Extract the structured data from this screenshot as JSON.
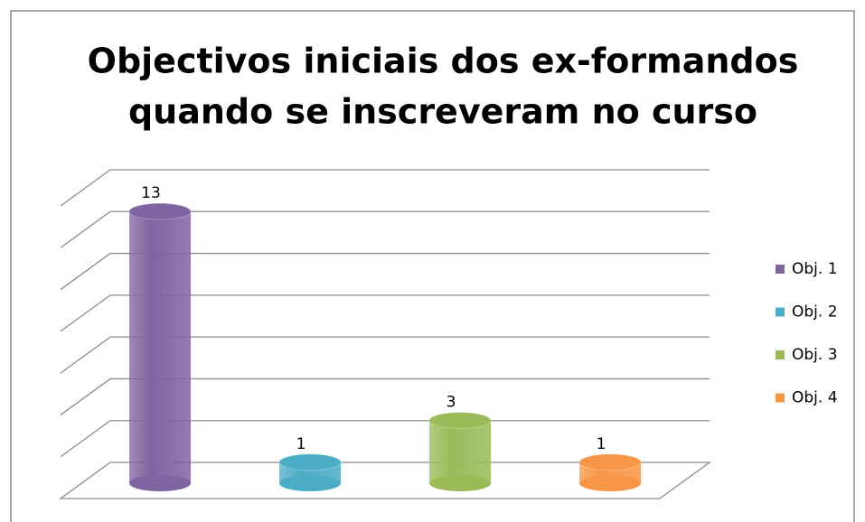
{
  "chart_data": {
    "type": "bar3d",
    "title": [
      "Objectivos iniciais dos ex-formandos",
      "quando se inscreveram no curso"
    ],
    "series": [
      {
        "name": "Obj. 1",
        "color": "#8064a2",
        "values": [
          13
        ]
      },
      {
        "name": "Obj. 2",
        "color": "#4bacc6",
        "values": [
          1
        ]
      },
      {
        "name": "Obj. 3",
        "color": "#9bbb59",
        "values": [
          3
        ]
      },
      {
        "name": "Obj. 4",
        "color": "#f79646",
        "values": [
          1
        ]
      }
    ],
    "ylim": [
      0,
      14
    ],
    "yticks": [
      0,
      2,
      4,
      6,
      8,
      10,
      12,
      14
    ],
    "grid": true,
    "legend": "right"
  }
}
